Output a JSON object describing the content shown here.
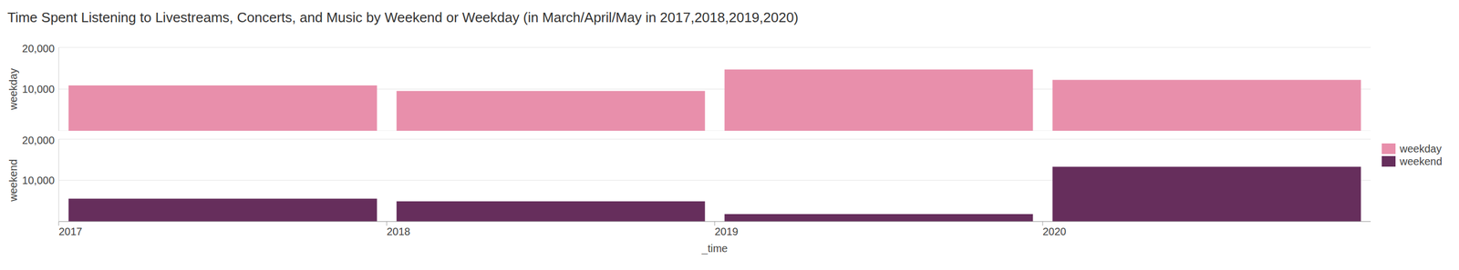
{
  "chart_data": {
    "type": "bar",
    "title": "Time Spent Listening to Livestreams, Concerts, and Music by Weekend or Weekday (in March/April/May in 2017,2018,2019,2020)",
    "x_label": "_time",
    "categories": [
      "2017",
      "2018",
      "2019",
      "2020"
    ],
    "series": [
      {
        "name": "weekday",
        "color": "#e88fab",
        "values": [
          10900,
          9550,
          14700,
          12200
        ]
      },
      {
        "name": "weekend",
        "color": "#662e5c",
        "values": [
          5550,
          4900,
          1800,
          13300
        ]
      }
    ],
    "ylim": [
      0,
      20000
    ],
    "yticks": [
      {
        "value": 10000,
        "label": "10,000"
      },
      {
        "value": 20000,
        "label": "20,000"
      }
    ],
    "grid": true,
    "legend": "right"
  }
}
